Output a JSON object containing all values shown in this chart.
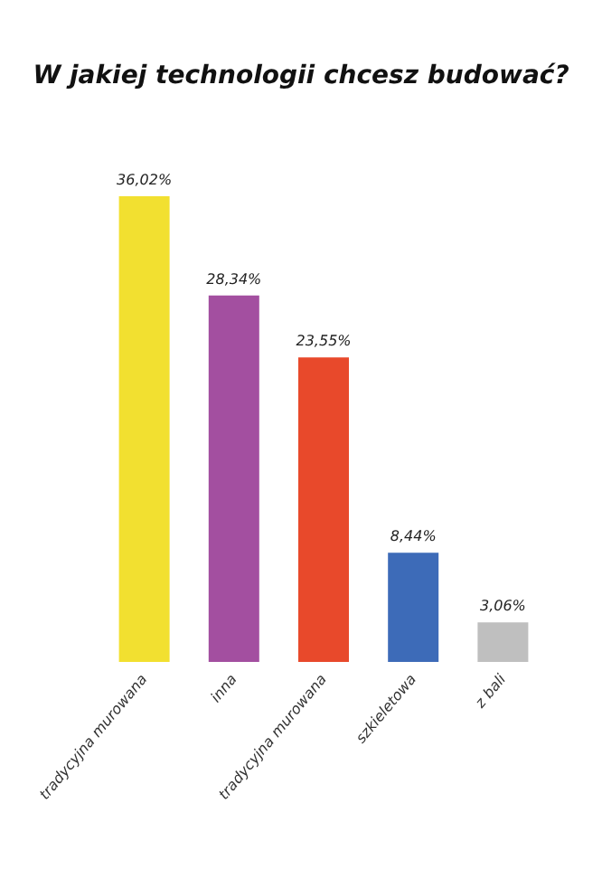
{
  "chart_data": {
    "type": "bar",
    "title": "W jakiej technologii chcesz budować?",
    "categories": [
      "tradycyjna murowana",
      "inna",
      "tradycyjna murowana",
      "szkieletowa",
      "z bali"
    ],
    "values": [
      36.02,
      28.34,
      23.55,
      8.44,
      3.06
    ],
    "value_labels": [
      "36,02%",
      "28,34%",
      "23,55%",
      "8,44%",
      "3,06%"
    ],
    "colors": [
      "#f2e030",
      "#a34fa0",
      "#e8492b",
      "#3d6bb8",
      "#bfbfbf"
    ]
  }
}
